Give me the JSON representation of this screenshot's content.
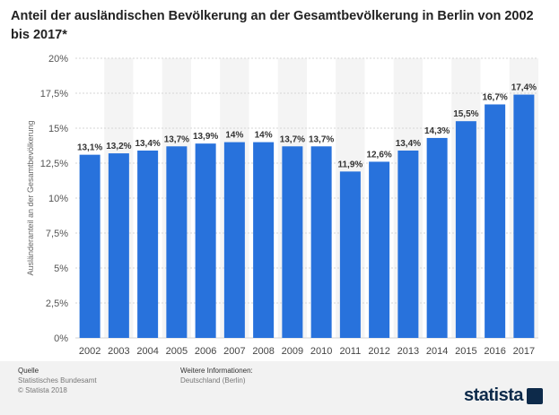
{
  "chart_data": {
    "type": "bar",
    "title": "Anteil der ausländischen Bevölkerung an der Gesamtbevölkerung in Berlin von 2002 bis 2017*",
    "ylabel": "Ausländeranteil an der Gesamtbevölkerung",
    "xlabel": "",
    "categories": [
      "2002",
      "2003",
      "2004",
      "2005",
      "2006",
      "2007",
      "2008",
      "2009",
      "2010",
      "2011",
      "2012",
      "2013",
      "2014",
      "2015",
      "2016",
      "2017"
    ],
    "values": [
      13.1,
      13.2,
      13.4,
      13.7,
      13.9,
      14.0,
      14.0,
      13.7,
      13.7,
      11.9,
      12.6,
      13.4,
      14.3,
      15.5,
      16.7,
      17.4
    ],
    "value_labels": [
      "13,1%",
      "13,2%",
      "13,4%",
      "13,7%",
      "13,9%",
      "14%",
      "14%",
      "13,7%",
      "13,7%",
      "11,9%",
      "12,6%",
      "13,4%",
      "14,3%",
      "15,5%",
      "16,7%",
      "17,4%"
    ],
    "ylim": [
      0,
      20
    ],
    "yticks": [
      0,
      2.5,
      5,
      7.5,
      10,
      12.5,
      15,
      17.5,
      20
    ],
    "ytick_labels": [
      "0%",
      "2,5%",
      "5%",
      "7,5%",
      "10%",
      "12,5%",
      "15%",
      "17,5%",
      "20%"
    ],
    "grid": true,
    "bar_color": "#2872dc"
  },
  "footer": {
    "source_heading": "Quelle",
    "source_line1": "Statistisches Bundesamt",
    "source_line2": "© Statista 2018",
    "info_heading": "Weitere Informationen:",
    "info_line1": "Deutschland (Berlin)",
    "logo": "statista"
  }
}
